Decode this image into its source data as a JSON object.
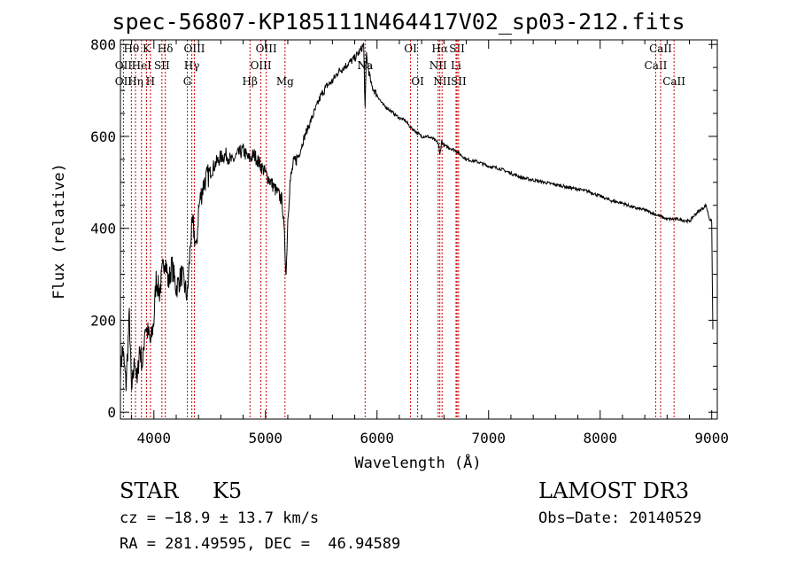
{
  "chart_data": {
    "type": "line",
    "title": "spec-56807-KP185111N464417V02_sp03-212.fits",
    "xlabel": "Wavelength (Å)",
    "ylabel": "Flux (relative)",
    "xlim": [
      3700,
      9050
    ],
    "ylim": [
      -15,
      810
    ],
    "x_ticks": [
      4000,
      5000,
      6000,
      7000,
      8000,
      9000
    ],
    "y_ticks": [
      0,
      200,
      400,
      600,
      800
    ],
    "grid": false,
    "series": [
      {
        "x": [
          3700,
          3720,
          3750,
          3780,
          3800,
          3830,
          3850,
          3870,
          3900,
          3920,
          3950,
          3970,
          4000,
          4020,
          4050,
          4080,
          4100,
          4130,
          4160,
          4200,
          4250,
          4300,
          4330,
          4350,
          4380,
          4400,
          4420,
          4450,
          4500,
          4550,
          4600,
          4650,
          4700,
          4750,
          4800,
          4850,
          4900,
          4950,
          5000,
          5050,
          5100,
          5150,
          5170,
          5185,
          5200,
          5220,
          5250,
          5300,
          5350,
          5400,
          5450,
          5500,
          5550,
          5600,
          5650,
          5700,
          5750,
          5800,
          5830,
          5860,
          5880,
          5893,
          5905,
          5920,
          5950,
          6000,
          6050,
          6100,
          6150,
          6200,
          6250,
          6300,
          6350,
          6400,
          6450,
          6500,
          6550,
          6563,
          6580,
          6600,
          6650,
          6700,
          6750,
          6800,
          6900,
          7000,
          7100,
          7200,
          7300,
          7400,
          7500,
          7600,
          7700,
          7800,
          7900,
          8000,
          8100,
          8200,
          8300,
          8400,
          8500,
          8600,
          8700,
          8800,
          8850,
          8900,
          8950,
          8980,
          9000,
          9010
        ],
        "y": [
          90,
          140,
          60,
          210,
          40,
          120,
          60,
          140,
          100,
          190,
          170,
          150,
          200,
          290,
          260,
          310,
          340,
          280,
          320,
          270,
          300,
          250,
          380,
          410,
          350,
          440,
          470,
          500,
          520,
          540,
          555,
          560,
          545,
          560,
          570,
          550,
          560,
          540,
          520,
          500,
          480,
          460,
          380,
          300,
          420,
          500,
          540,
          560,
          600,
          630,
          660,
          690,
          710,
          720,
          740,
          750,
          760,
          770,
          780,
          790,
          800,
          660,
          780,
          750,
          710,
          690,
          670,
          660,
          650,
          640,
          635,
          620,
          610,
          600,
          600,
          595,
          585,
          560,
          590,
          580,
          575,
          570,
          560,
          550,
          545,
          535,
          530,
          520,
          510,
          505,
          500,
          495,
          490,
          485,
          480,
          470,
          460,
          455,
          445,
          440,
          430,
          420,
          420,
          415,
          430,
          440,
          450,
          420,
          415,
          180
        ]
      }
    ],
    "lines": [
      {
        "wl": 3727,
        "labels": [
          "OII",
          "OII"
        ],
        "rows": [
          1,
          2
        ]
      },
      {
        "wl": 3798,
        "labels": [
          "Hθ"
        ],
        "rows": [
          0
        ]
      },
      {
        "wl": 3835,
        "labels": [
          "Hη"
        ],
        "rows": [
          2
        ]
      },
      {
        "wl": 3889,
        "labels": [
          "HeI"
        ],
        "rows": [
          1
        ]
      },
      {
        "wl": 3934,
        "labels": [
          "K"
        ],
        "rows": [
          0
        ]
      },
      {
        "wl": 3969,
        "labels": [
          "H"
        ],
        "rows": [
          2
        ]
      },
      {
        "wl": 4072,
        "labels": [
          "SII"
        ],
        "rows": [
          1
        ]
      },
      {
        "wl": 4102,
        "labels": [
          "Hδ"
        ],
        "rows": [
          0
        ]
      },
      {
        "wl": 4300,
        "labels": [
          "G"
        ],
        "rows": [
          2
        ]
      },
      {
        "wl": 4340,
        "labels": [
          "Hγ"
        ],
        "rows": [
          1
        ]
      },
      {
        "wl": 4363,
        "labels": [
          "OIII"
        ],
        "rows": [
          0
        ]
      },
      {
        "wl": 4861,
        "labels": [
          "Hβ"
        ],
        "rows": [
          2
        ]
      },
      {
        "wl": 4959,
        "labels": [
          "OIII"
        ],
        "rows": [
          1
        ]
      },
      {
        "wl": 5007,
        "labels": [
          "OIII"
        ],
        "rows": [
          0
        ]
      },
      {
        "wl": 5175,
        "labels": [
          "Mg"
        ],
        "rows": [
          2
        ]
      },
      {
        "wl": 5893,
        "labels": [
          "Na",
          "Na"
        ],
        "rows": [
          1,
          1
        ]
      },
      {
        "wl": 6300,
        "labels": [
          "OI"
        ],
        "rows": [
          0
        ]
      },
      {
        "wl": 6364,
        "labels": [
          "OI"
        ],
        "rows": [
          2
        ]
      },
      {
        "wl": 6548,
        "labels": [
          "NII"
        ],
        "rows": [
          1
        ]
      },
      {
        "wl": 6563,
        "labels": [
          "Hα"
        ],
        "rows": [
          0
        ]
      },
      {
        "wl": 6583,
        "labels": [
          "NII"
        ],
        "rows": [
          2
        ]
      },
      {
        "wl": 6708,
        "labels": [
          "Li"
        ],
        "rows": [
          1
        ]
      },
      {
        "wl": 6717,
        "labels": [
          "SII"
        ],
        "rows": [
          0
        ]
      },
      {
        "wl": 6731,
        "labels": [
          "SII"
        ],
        "rows": [
          2
        ]
      },
      {
        "wl": 8498,
        "labels": [
          "CaII"
        ],
        "rows": [
          1
        ]
      },
      {
        "wl": 8542,
        "labels": [
          "CaII"
        ],
        "rows": [
          0
        ]
      },
      {
        "wl": 8662,
        "labels": [
          "CaII"
        ],
        "rows": [
          2
        ]
      }
    ],
    "line_color": "#cc0000",
    "spectrum_color": "#000000"
  },
  "info": {
    "class": "STAR",
    "subclass": "K5",
    "survey": "LAMOST DR3",
    "cz": "cz = −18.9 ± 13.7 km/s",
    "obs_date": "Obs−Date: 20140529",
    "coords": "RA = 281.49595, DEC =  46.94589"
  }
}
